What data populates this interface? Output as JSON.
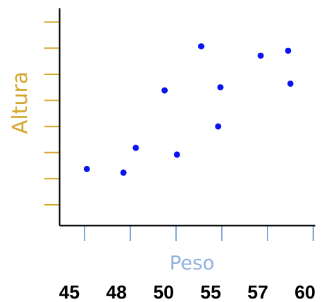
{
  "chart_data": {
    "type": "scatter",
    "title": "",
    "xlabel": "Peso",
    "ylabel": "Altura",
    "x_tick_labels": [
      "45",
      "48",
      "50",
      "55",
      "57",
      "60"
    ],
    "y_ticks_count": 8,
    "y_tick_labels": [],
    "grid": false,
    "point_color": "#0a14f0",
    "xlabel_color": "#8fb3de",
    "ylabel_color": "#d4a62a",
    "points": [
      {
        "tick": 0.05,
        "y": 2.17
      },
      {
        "tick": 0.85,
        "y": 2.03
      },
      {
        "tick": 1.12,
        "y": 2.98
      },
      {
        "tick": 1.75,
        "y": 5.18
      },
      {
        "tick": 2.02,
        "y": 2.72
      },
      {
        "tick": 2.55,
        "y": 6.87
      },
      {
        "tick": 2.92,
        "y": 3.8
      },
      {
        "tick": 2.97,
        "y": 5.3
      },
      {
        "tick": 3.85,
        "y": 6.51
      },
      {
        "tick": 4.45,
        "y": 6.7
      },
      {
        "tick": 4.5,
        "y": 5.44
      }
    ]
  }
}
